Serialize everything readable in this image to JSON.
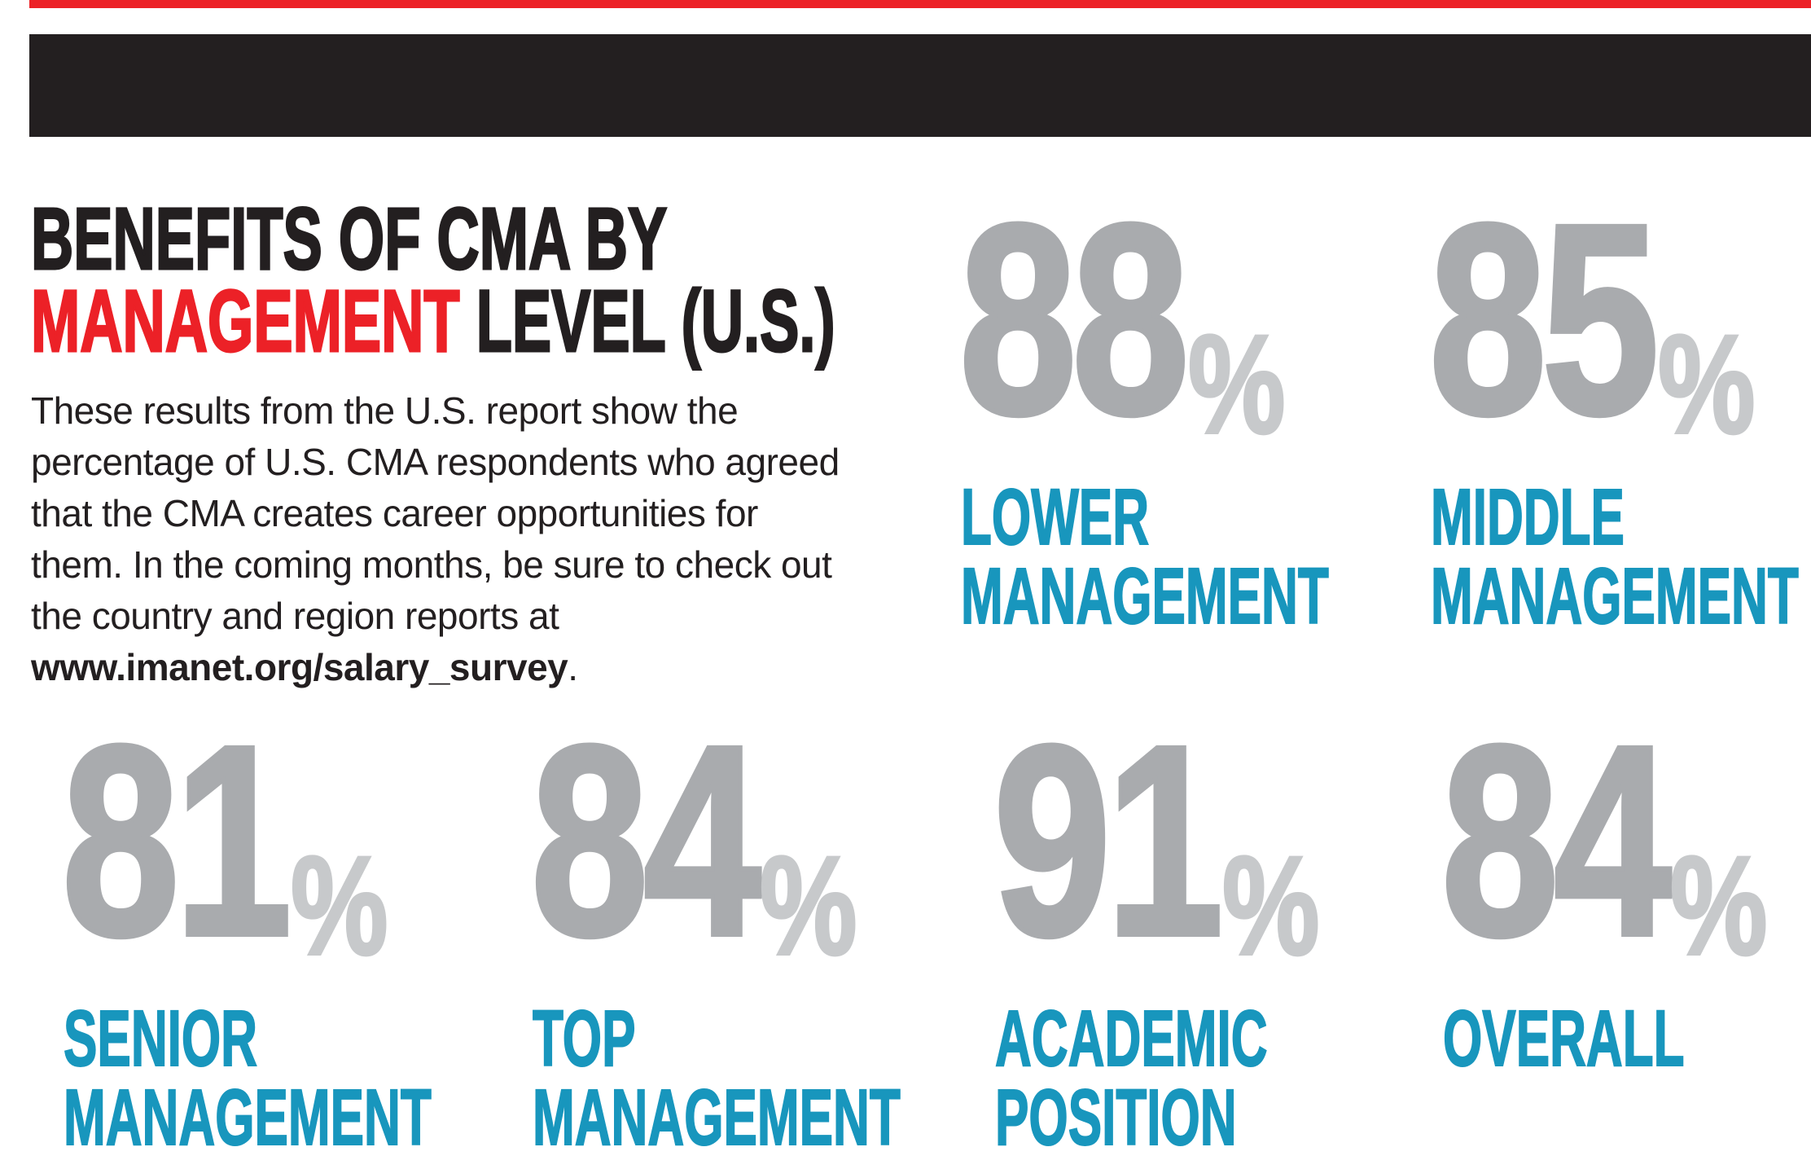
{
  "colors": {
    "page_bg": "#ffffff",
    "ink_black": "#231f20",
    "accent_red": "#ec2127",
    "stat_number_gray": "#a9abae",
    "stat_percent_gray": "#c7c9cb",
    "label_blue": "#1896bd"
  },
  "title": {
    "line1": "BENEFITS OF CMA BY",
    "line2_red": "MANAGEMENT",
    "line2_black": " LEVEL (U.S.)"
  },
  "intro": {
    "lines": [
      "These results from the U.S. report show the",
      "percentage of U.S. CMA respondents who agreed",
      "that the CMA creates career opportunities for",
      "them. In the coming months, be sure to check out",
      "the country and region reports at"
    ],
    "link": "www.imanet.org/salary_survey",
    "suffix": "."
  },
  "stats": [
    {
      "value": "88",
      "unit": "%",
      "label1": "LOWER",
      "label2": "MANAGEMENT"
    },
    {
      "value": "85",
      "unit": "%",
      "label1": "MIDDLE",
      "label2": "MANAGEMENT"
    },
    {
      "value": "81",
      "unit": "%",
      "label1": "SENIOR",
      "label2": "MANAGEMENT"
    },
    {
      "value": "84",
      "unit": "%",
      "label1": "TOP",
      "label2": "MANAGEMENT"
    },
    {
      "value": "91",
      "unit": "%",
      "label1": "ACADEMIC",
      "label2": "POSITION"
    },
    {
      "value": "84",
      "unit": "%",
      "label1": "OVERALL",
      "label2": ""
    }
  ],
  "chart_data": {
    "type": "bar",
    "title": "BENEFITS OF CMA BY MANAGEMENT LEVEL (U.S.)",
    "subtitle": "Percentage of U.S. CMA respondents who agreed that the CMA creates career opportunities for them",
    "categories": [
      "Lower Management",
      "Middle Management",
      "Senior Management",
      "Top Management",
      "Academic Position",
      "Overall"
    ],
    "values": [
      88,
      85,
      81,
      84,
      91,
      84
    ],
    "unit": "%",
    "ylim": [
      0,
      100
    ],
    "legend": "none",
    "grid": false
  }
}
